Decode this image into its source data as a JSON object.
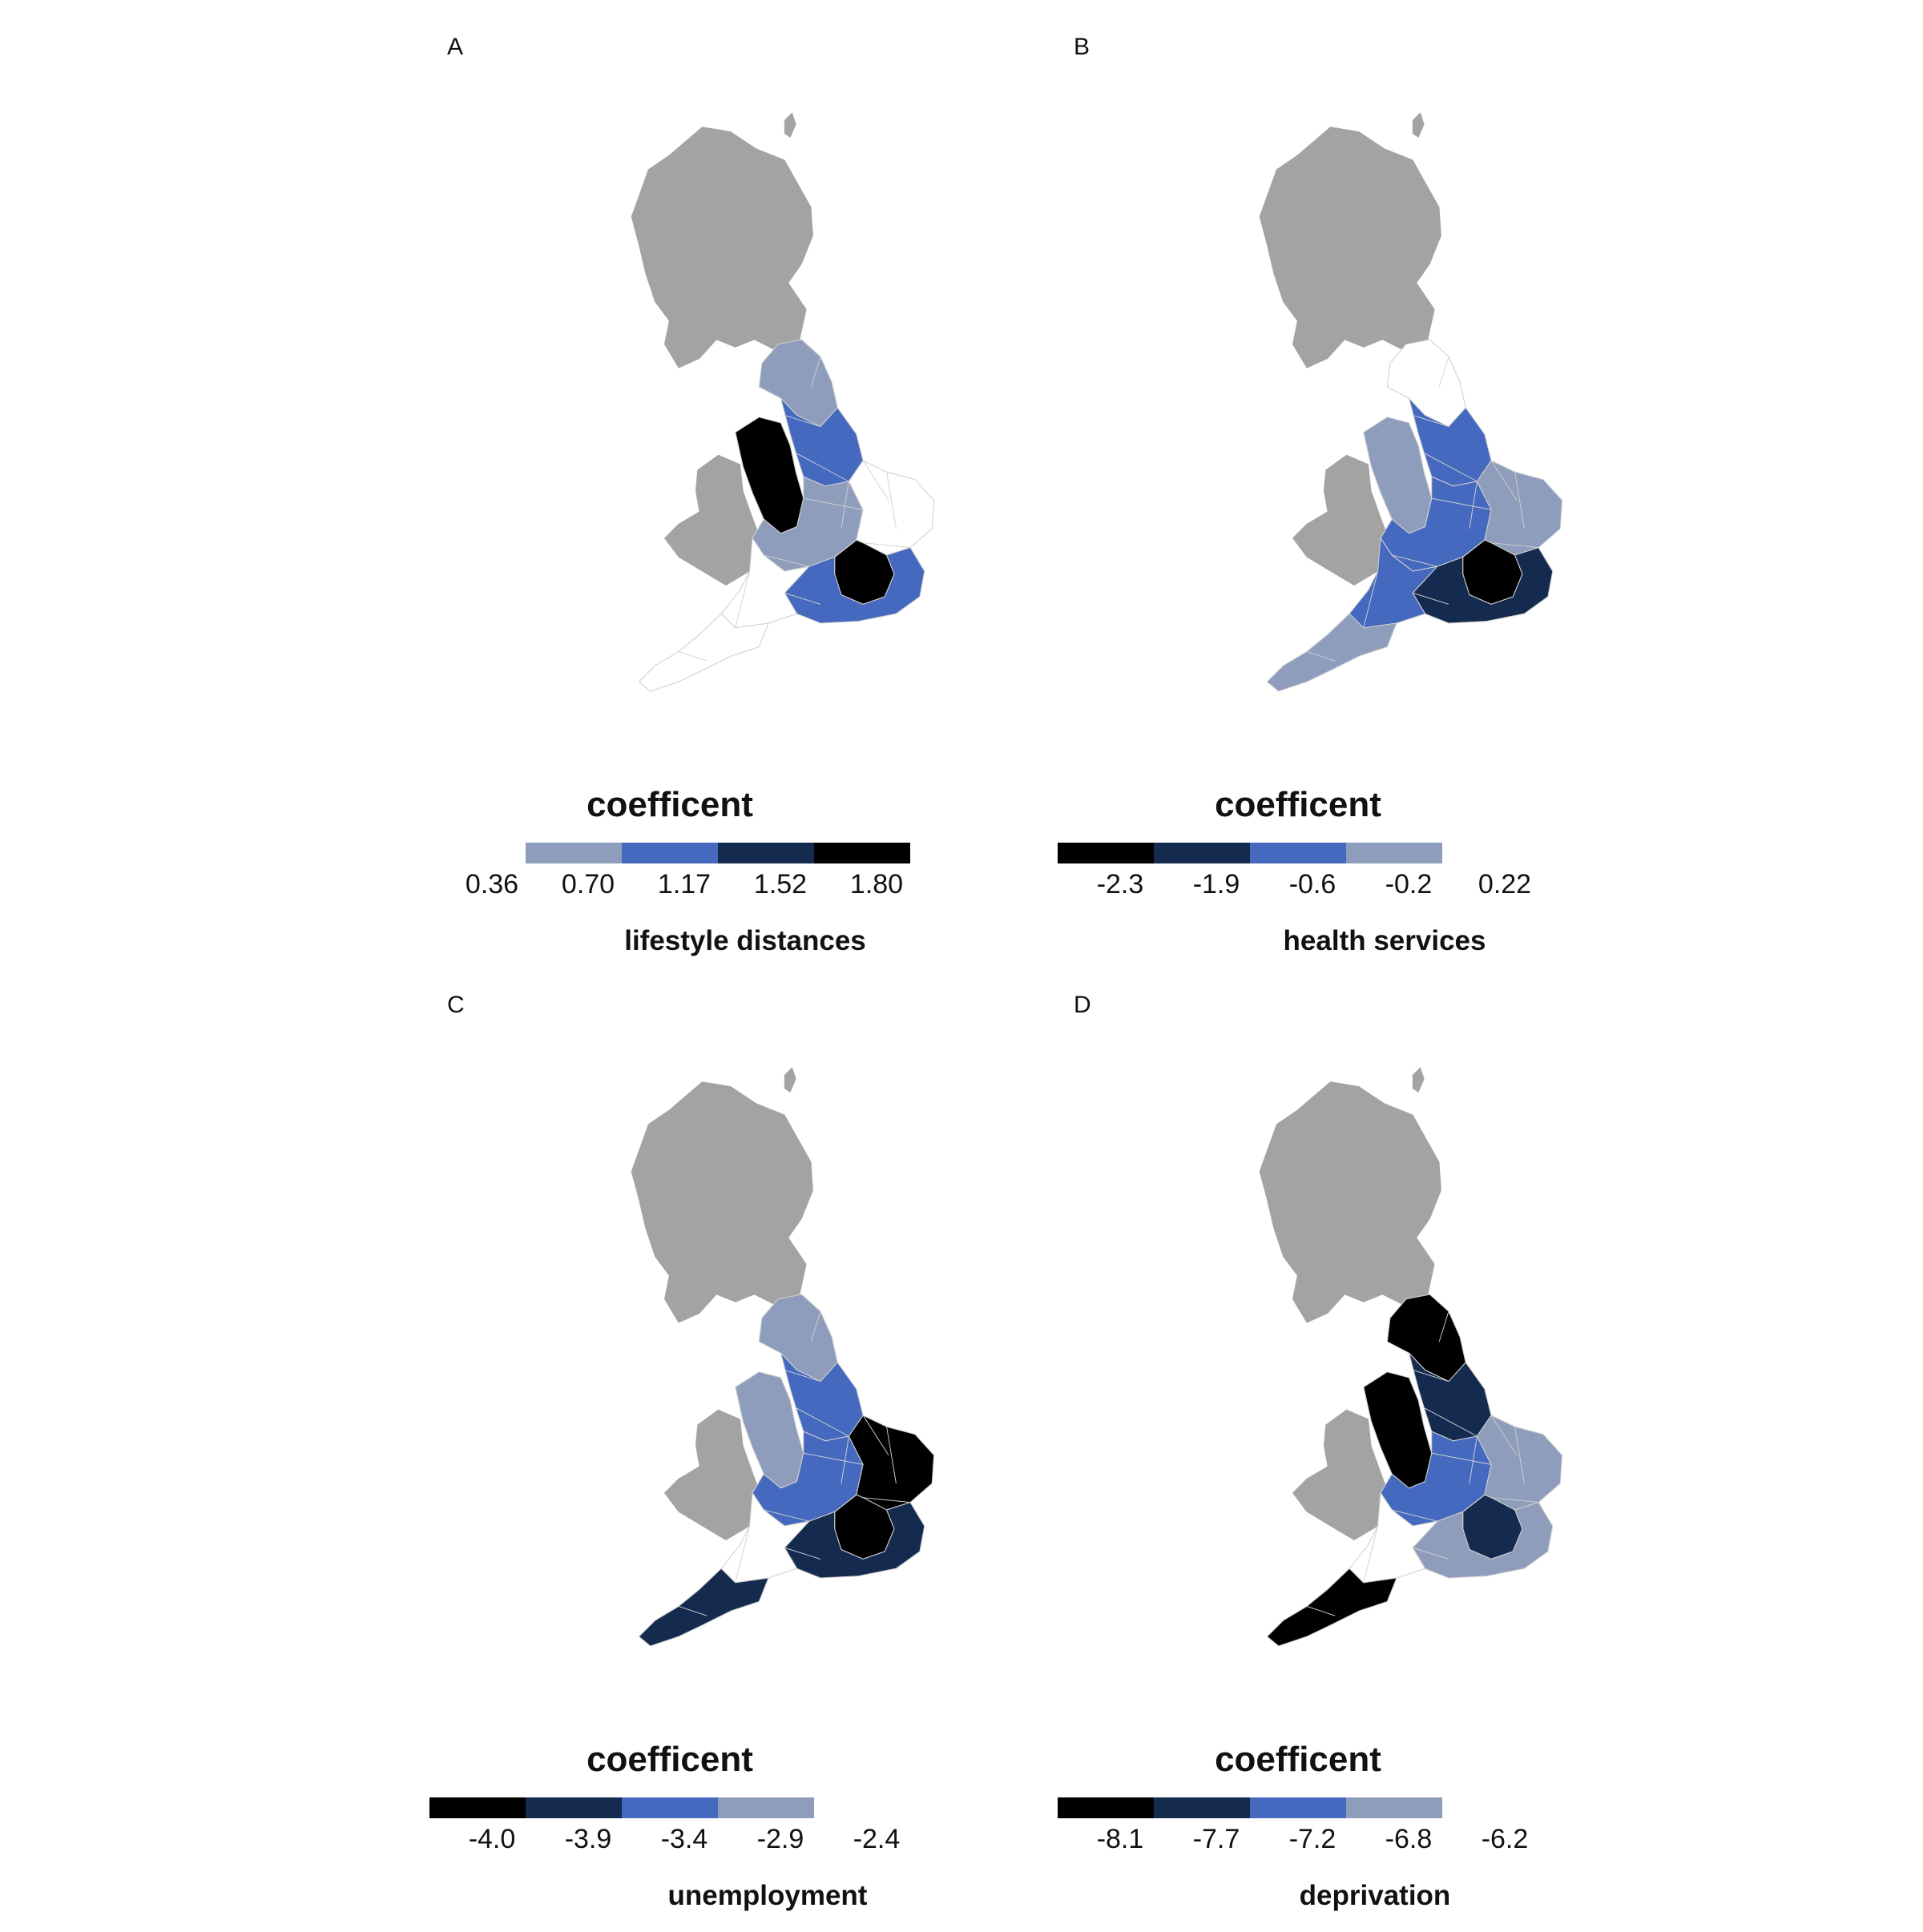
{
  "colors": {
    "palette": [
      "#ffffff",
      "#8e9dbc",
      "#4469bf",
      "#142a4e",
      "#000000"
    ],
    "landmass": "#a3a3a3",
    "boundary": "#d0d0d0"
  },
  "panels": [
    {
      "letter": "A",
      "legend_title": "coefficent",
      "variable": "lifestyle distances",
      "legend_ticks": [
        "0.36",
        "0.70",
        "1.17",
        "1.52",
        "1.80"
      ],
      "legend_order": [
        0,
        1,
        2,
        3,
        4
      ],
      "regions": {
        "north": 1,
        "northwest": 4,
        "yorkshire": 2,
        "midlands": 1,
        "east": 0,
        "london": 4,
        "southeast": 2,
        "southwest": 0,
        "devon": 0
      }
    },
    {
      "letter": "B",
      "legend_title": "coefficent",
      "variable": "health services",
      "legend_ticks": [
        "-2.3",
        "-1.9",
        "-0.6",
        "-0.2",
        "0.22"
      ],
      "legend_order": [
        4,
        3,
        2,
        1,
        0
      ],
      "regions": {
        "north": 0,
        "northwest": 1,
        "yorkshire": 2,
        "midlands": 2,
        "east": 1,
        "london": 4,
        "southeast": 3,
        "southwest": 2,
        "devon": 1
      }
    },
    {
      "letter": "C",
      "legend_title": "coefficent",
      "variable": "unemployment",
      "legend_ticks": [
        "-4.0",
        "-3.9",
        "-3.4",
        "-2.9",
        "-2.4"
      ],
      "legend_order": [
        4,
        3,
        2,
        1,
        0
      ],
      "regions": {
        "north": 1,
        "northwest": 1,
        "yorkshire": 2,
        "midlands": 2,
        "east": 4,
        "london": 4,
        "southeast": 3,
        "southwest": 0,
        "devon": 3
      }
    },
    {
      "letter": "D",
      "legend_title": "coefficent",
      "variable": "deprivation",
      "legend_ticks": [
        "-8.1",
        "-7.7",
        "-7.2",
        "-6.8",
        "-6.2"
      ],
      "legend_order": [
        4,
        3,
        2,
        1,
        0
      ],
      "regions": {
        "north": 4,
        "northwest": 4,
        "yorkshire": 3,
        "midlands": 2,
        "east": 1,
        "london": 3,
        "southeast": 1,
        "southwest": 0,
        "devon": 4
      }
    }
  ]
}
